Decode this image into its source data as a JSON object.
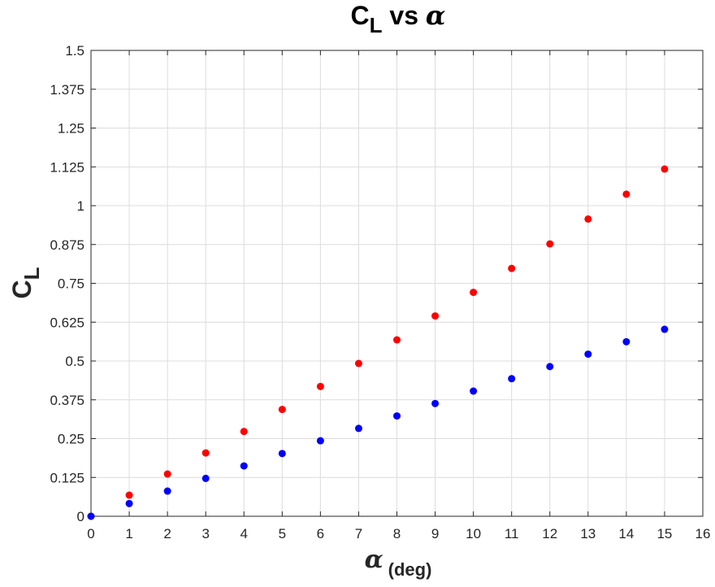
{
  "chart_data": {
    "type": "scatter",
    "title": {
      "main": "C",
      "sub": "L",
      "mid": " vs ",
      "greek": "α"
    },
    "xlabel": {
      "greek": "α",
      "sub": "(deg)"
    },
    "ylabel": {
      "main": "C",
      "sub": "L"
    },
    "xlim": [
      0,
      16
    ],
    "ylim": [
      0,
      1.5
    ],
    "xticks": [
      0,
      1,
      2,
      3,
      4,
      5,
      6,
      7,
      8,
      9,
      10,
      11,
      12,
      13,
      14,
      15,
      16
    ],
    "yticks": [
      0,
      0.125,
      0.25,
      0.375,
      0.5,
      0.625,
      0.75,
      0.875,
      1,
      1.125,
      1.25,
      1.375,
      1.5
    ],
    "xtick_labels": [
      "0",
      "1",
      "2",
      "3",
      "4",
      "5",
      "6",
      "7",
      "8",
      "9",
      "10",
      "11",
      "12",
      "13",
      "14",
      "15",
      "16"
    ],
    "ytick_labels": [
      "0",
      "0.125",
      "0.25",
      "0.375",
      "0.5",
      "0.625",
      "0.75",
      "0.875",
      "1",
      "1.125",
      "1.25",
      "1.375",
      "1.5"
    ],
    "grid": true,
    "series": [
      {
        "color": "#ff0000",
        "x": [
          0,
          1,
          2,
          3,
          4,
          5,
          6,
          7,
          8,
          9,
          10,
          11,
          12,
          13,
          14,
          15
        ],
        "y": [
          0,
          0.068,
          0.136,
          0.204,
          0.273,
          0.344,
          0.418,
          0.492,
          0.568,
          0.645,
          0.721,
          0.798,
          0.877,
          0.957,
          1.037,
          1.118
        ]
      },
      {
        "color": "#0000ff",
        "x": [
          0,
          1,
          2,
          3,
          4,
          5,
          6,
          7,
          8,
          9,
          10,
          11,
          12,
          13,
          14,
          15
        ],
        "y": [
          0,
          0.041,
          0.081,
          0.122,
          0.162,
          0.202,
          0.243,
          0.283,
          0.323,
          0.363,
          0.403,
          0.443,
          0.482,
          0.522,
          0.562,
          0.602
        ]
      }
    ]
  }
}
